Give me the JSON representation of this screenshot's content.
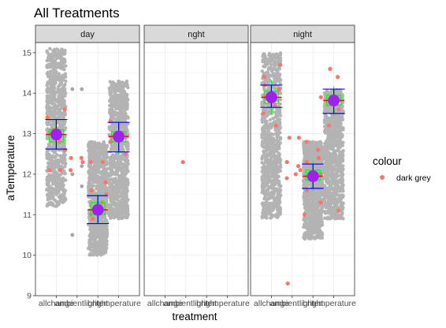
{
  "chart_data": {
    "type": "scatter",
    "title": "All Treatments",
    "xlabel": "treatment",
    "ylabel": "aTemperature",
    "ylim": [
      9,
      15.25
    ],
    "yticks": [
      "9",
      "10",
      "11",
      "12",
      "13",
      "14",
      "15"
    ],
    "categories": [
      "allchange",
      "ambientlight",
      "bright",
      "temperature"
    ],
    "facets": [
      "day",
      "nght",
      "night"
    ],
    "legend": {
      "title": "colour",
      "entries": [
        {
          "label": "dark grey",
          "color": "#F8766D"
        }
      ],
      "position": "right"
    },
    "grid": true,
    "colors": {
      "jitter_points": "#b3b3b3",
      "highlight_points": "#F8766D",
      "mean_marker": "#A020F0",
      "errorbar": "#0000FF",
      "box": "#00FF00",
      "median": "#FF0000"
    },
    "panels": [
      {
        "facet": "day",
        "groups": [
          {
            "treatment": "allchange",
            "range": [
              11.2,
              15.1
            ],
            "mean": 12.98,
            "ci": [
              12.62,
              13.35
            ],
            "box": [
              12.8,
              13.1
            ],
            "median": 12.98,
            "whisker": [
              12.7,
              13.25
            ],
            "highlights": [
              [
                12.1,
                12.1
              ],
              [
                13.4,
                13.6
              ],
              [
                13.1,
                12.8
              ],
              [
                13.0,
                12.6
              ]
            ]
          },
          {
            "treatment": "ambientlight",
            "range": null,
            "mean": null,
            "ci": null,
            "highlights": [
              [
                12.1,
                12.3
              ],
              [
                12.4,
                12.4
              ]
            ],
            "others": [
              [
                10.5,
                14.1
              ],
              [
                14.1,
                12.2
              ],
              [
                12.0,
                11.7
              ]
            ]
          },
          {
            "treatment": "bright",
            "range": [
              10.0,
              12.8
            ],
            "mean": 11.12,
            "ci": [
              10.78,
              11.47
            ],
            "box": [
              11.0,
              11.3
            ],
            "median": 11.12,
            "whisker": [
              10.9,
              11.4
            ],
            "highlights": [
              [
                12.3,
                12.3
              ],
              [
                11.6,
                11.5
              ],
              [
                11.0,
                11.3
              ],
              [
                10.9,
                11.8
              ]
            ]
          },
          {
            "treatment": "temperature",
            "range": [
              10.9,
              14.3
            ],
            "mean": 12.93,
            "ci": [
              12.55,
              13.28
            ],
            "box": [
              12.8,
              13.05
            ],
            "median": 12.93,
            "whisker": [
              12.6,
              13.2
            ],
            "highlights": [
              [
                13.3,
                13.0
              ],
              [
                12.8,
                12.5
              ]
            ]
          }
        ]
      },
      {
        "facet": "nght",
        "groups": [
          {
            "treatment": "ambientlight",
            "range": null,
            "mean": null,
            "ci": null,
            "highlights": [
              [
                12.3
              ]
            ]
          }
        ]
      },
      {
        "facet": "night",
        "groups": [
          {
            "treatment": "allchange",
            "range": [
              10.9,
              15.0
            ],
            "mean": 13.9,
            "ci": [
              13.65,
              14.2
            ],
            "box": [
              13.75,
              14.05
            ],
            "median": 13.9,
            "whisker": [
              13.6,
              14.2
            ],
            "highlights": [
              [
                14.4,
                14.7
              ],
              [
                13.5,
                13.2
              ],
              [
                14.2,
                13.7
              ],
              [
                13.9,
                14.1
              ]
            ]
          },
          {
            "treatment": "ambientlight",
            "range": null,
            "mean": null,
            "ci": null,
            "highlights": [
              [
                9.3,
                12.0
              ],
              [
                12.3,
                12.9
              ],
              [
                11.9,
                12.2
              ],
              [
                12.9,
                12.1
              ]
            ]
          },
          {
            "treatment": "bright",
            "range": [
              10.4,
              12.8
            ],
            "mean": 11.95,
            "ci": [
              11.65,
              12.25
            ],
            "box": [
              11.85,
              12.1
            ],
            "median": 11.95,
            "whisker": [
              11.7,
              12.2
            ],
            "highlights": [
              [
                11.0,
                11.3
              ],
              [
                12.8,
                13.9
              ],
              [
                12.3,
                12.0
              ],
              [
                11.6,
                12.6
              ],
              [
                11.9,
                12.4
              ]
            ]
          },
          {
            "treatment": "temperature",
            "range": [
              10.9,
              14.1
            ],
            "mean": 13.82,
            "ci": [
              13.5,
              14.1
            ],
            "box": [
              13.7,
              13.95
            ],
            "median": 13.82,
            "whisker": [
              13.55,
              14.05
            ],
            "highlights": [
              [
                14.6,
                14.4
              ],
              [
                13.2,
                11.1
              ],
              [
                13.9,
                13.6
              ]
            ]
          }
        ]
      }
    ]
  }
}
